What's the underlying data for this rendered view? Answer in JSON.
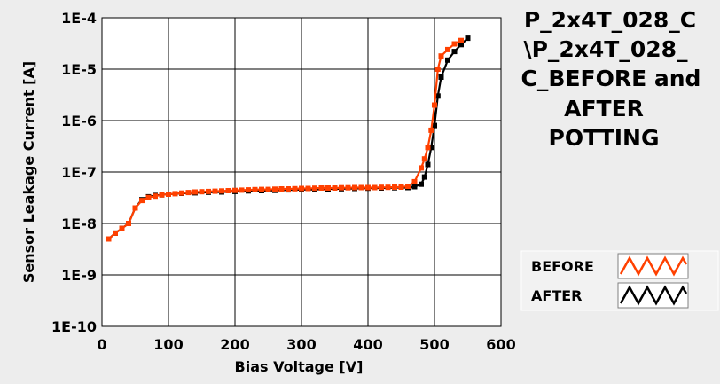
{
  "colors": {
    "before": "#ff4000",
    "after": "#000000",
    "plot_bg": "#ffffff",
    "grid": "#000000",
    "page_bg": "#ededed"
  },
  "chart_data": {
    "type": "line",
    "title_lines": [
      "P_2x4T_028_C",
      "\\P_2x4T_028_",
      "C_BEFORE and",
      "AFTER",
      "POTTING"
    ],
    "xlabel": "Bias Voltage [V]",
    "ylabel": "Sensor Leakage Current [A]",
    "xlim": [
      0,
      600
    ],
    "ylim": [
      1e-10,
      0.0001
    ],
    "yscale": "log",
    "grid": true,
    "legend_position": "bottom-right",
    "x_ticks": [
      0,
      100,
      200,
      300,
      400,
      500,
      600
    ],
    "x_tick_labels": [
      "0",
      "100",
      "200",
      "300",
      "400",
      "500",
      "600"
    ],
    "y_ticks": [
      0.0001,
      1e-05,
      1e-06,
      1e-07,
      1e-08,
      1e-09,
      1e-10
    ],
    "y_tick_labels": [
      "1E-4",
      "1E-5",
      "1E-6",
      "1E-7",
      "1E-8",
      "1E-9",
      "1E-10"
    ],
    "series": [
      {
        "name": "BEFORE",
        "color": "#ff4000",
        "x": [
          10,
          20,
          30,
          40,
          50,
          60,
          70,
          80,
          90,
          100,
          110,
          120,
          130,
          140,
          150,
          160,
          170,
          180,
          190,
          200,
          210,
          220,
          230,
          240,
          250,
          260,
          270,
          280,
          290,
          300,
          310,
          320,
          330,
          340,
          350,
          360,
          370,
          380,
          390,
          400,
          410,
          420,
          430,
          440,
          450,
          460,
          470,
          480,
          485,
          490,
          495,
          500,
          505,
          510,
          520,
          530,
          540
        ],
        "y": [
          5e-09,
          6.5e-09,
          8e-09,
          1e-08,
          2e-08,
          2.8e-08,
          3.2e-08,
          3.4e-08,
          3.6e-08,
          3.7e-08,
          3.8e-08,
          3.9e-08,
          4e-08,
          4.1e-08,
          4.15e-08,
          4.2e-08,
          4.25e-08,
          4.3e-08,
          4.35e-08,
          4.4e-08,
          4.45e-08,
          4.5e-08,
          4.55e-08,
          4.6e-08,
          4.6e-08,
          4.65e-08,
          4.7e-08,
          4.7e-08,
          4.75e-08,
          4.8e-08,
          4.8e-08,
          4.85e-08,
          4.9e-08,
          4.9e-08,
          4.9e-08,
          4.95e-08,
          4.95e-08,
          5e-08,
          5e-08,
          5e-08,
          5e-08,
          5.05e-08,
          5.05e-08,
          5.1e-08,
          5.1e-08,
          5.3e-08,
          6.5e-08,
          1.2e-07,
          1.8e-07,
          3e-07,
          6.5e-07,
          2e-06,
          1e-05,
          1.8e-05,
          2.4e-05,
          3.1e-05,
          3.6e-05
        ]
      },
      {
        "name": "AFTER",
        "color": "#000000",
        "x": [
          10,
          20,
          30,
          40,
          50,
          60,
          70,
          80,
          90,
          100,
          120,
          140,
          160,
          180,
          200,
          220,
          240,
          260,
          280,
          300,
          320,
          340,
          360,
          380,
          400,
          420,
          440,
          460,
          470,
          480,
          485,
          490,
          495,
          500,
          505,
          510,
          520,
          530,
          540,
          550
        ],
        "y": [
          5e-09,
          6.5e-09,
          8e-09,
          1e-08,
          2e-08,
          2.9e-08,
          3.3e-08,
          3.5e-08,
          3.6e-08,
          3.7e-08,
          3.85e-08,
          3.95e-08,
          4.05e-08,
          4.1e-08,
          4.2e-08,
          4.3e-08,
          4.35e-08,
          4.4e-08,
          4.5e-08,
          4.55e-08,
          4.6e-08,
          4.7e-08,
          4.75e-08,
          4.8e-08,
          4.85e-08,
          4.9e-08,
          4.95e-08,
          5e-08,
          5.2e-08,
          5.8e-08,
          8e-08,
          1.4e-07,
          3e-07,
          8e-07,
          3e-06,
          7e-06,
          1.5e-05,
          2.2e-05,
          3e-05,
          4e-05
        ]
      }
    ]
  }
}
